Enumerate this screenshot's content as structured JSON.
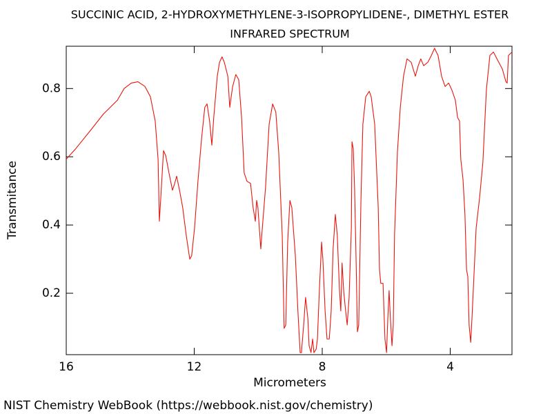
{
  "chart_data": {
    "type": "line",
    "title": "SUCCINIC ACID, 2-HYDROXYMETHYLENE-3-ISOPROPYLIDENE-, DIMETHYL ESTER",
    "subtitle": "INFRARED SPECTRUM",
    "x_label": "Micrometers",
    "y_label": "Transmitance",
    "credit": "NIST Chemistry WebBook (https://webbook.nist.gov/chemistry)",
    "color": "#e8140c",
    "xlim": [
      16,
      2.07
    ],
    "ylim": [
      0.02,
      0.924
    ],
    "xticks": [
      16,
      12,
      8,
      4
    ],
    "yticks": [
      0.2,
      0.4,
      0.6,
      0.8
    ],
    "x": [
      16.0,
      15.7,
      15.27,
      14.84,
      14.4,
      14.19,
      13.97,
      13.76,
      13.54,
      13.37,
      13.22,
      13.13,
      13.09,
      13.05,
      12.96,
      12.89,
      12.79,
      12.68,
      12.61,
      12.55,
      12.46,
      12.36,
      12.25,
      12.14,
      12.08,
      11.99,
      11.88,
      11.77,
      11.67,
      11.6,
      11.52,
      11.45,
      11.39,
      11.28,
      11.21,
      11.13,
      11.06,
      10.95,
      10.89,
      10.8,
      10.7,
      10.61,
      10.52,
      10.44,
      10.35,
      10.24,
      10.16,
      10.09,
      10.05,
      10.01,
      9.92,
      9.88,
      9.77,
      9.66,
      9.55,
      9.45,
      9.36,
      9.25,
      9.19,
      9.14,
      9.08,
      9.01,
      8.95,
      8.84,
      8.76,
      8.69,
      8.65,
      8.58,
      8.52,
      8.45,
      8.41,
      8.35,
      8.3,
      8.26,
      8.19,
      8.15,
      8.09,
      8.02,
      7.98,
      7.91,
      7.85,
      7.78,
      7.72,
      7.66,
      7.59,
      7.53,
      7.46,
      7.42,
      7.38,
      7.33,
      7.29,
      7.22,
      7.16,
      7.09,
      7.07,
      7.03,
      6.99,
      6.94,
      6.9,
      6.86,
      6.79,
      6.73,
      6.64,
      6.53,
      6.47,
      6.36,
      6.25,
      6.21,
      6.17,
      6.1,
      6.04,
      5.99,
      5.95,
      5.91,
      5.87,
      5.82,
      5.78,
      5.74,
      5.65,
      5.56,
      5.46,
      5.35,
      5.22,
      5.09,
      5.0,
      4.92,
      4.83,
      4.7,
      4.59,
      4.49,
      4.38,
      4.27,
      4.16,
      4.05,
      3.95,
      3.84,
      3.77,
      3.71,
      3.67,
      3.6,
      3.54,
      3.49,
      3.45,
      3.41,
      3.36,
      3.32,
      3.28,
      3.19,
      3.08,
      2.98,
      2.87,
      2.76,
      2.65,
      2.54,
      2.37,
      2.26,
      2.22,
      2.18,
      2.07
    ],
    "values": [
      0.593,
      0.624,
      0.674,
      0.725,
      0.766,
      0.8,
      0.816,
      0.82,
      0.806,
      0.776,
      0.705,
      0.593,
      0.411,
      0.472,
      0.618,
      0.603,
      0.553,
      0.502,
      0.522,
      0.543,
      0.502,
      0.451,
      0.37,
      0.3,
      0.31,
      0.391,
      0.533,
      0.654,
      0.745,
      0.755,
      0.705,
      0.634,
      0.715,
      0.836,
      0.877,
      0.893,
      0.877,
      0.836,
      0.745,
      0.806,
      0.841,
      0.826,
      0.715,
      0.553,
      0.528,
      0.522,
      0.451,
      0.411,
      0.472,
      0.451,
      0.33,
      0.381,
      0.512,
      0.695,
      0.755,
      0.731,
      0.614,
      0.37,
      0.097,
      0.107,
      0.35,
      0.472,
      0.451,
      0.31,
      0.148,
      0.026,
      0.026,
      0.107,
      0.188,
      0.127,
      0.046,
      0.026,
      0.066,
      0.026,
      0.036,
      0.066,
      0.208,
      0.35,
      0.3,
      0.148,
      0.066,
      0.066,
      0.148,
      0.33,
      0.431,
      0.37,
      0.208,
      0.148,
      0.289,
      0.208,
      0.168,
      0.107,
      0.188,
      0.391,
      0.644,
      0.624,
      0.512,
      0.289,
      0.087,
      0.107,
      0.472,
      0.695,
      0.776,
      0.792,
      0.776,
      0.695,
      0.451,
      0.269,
      0.229,
      0.229,
      0.066,
      0.026,
      0.127,
      0.208,
      0.127,
      0.046,
      0.107,
      0.37,
      0.614,
      0.745,
      0.836,
      0.887,
      0.877,
      0.836,
      0.867,
      0.887,
      0.867,
      0.877,
      0.897,
      0.918,
      0.897,
      0.836,
      0.806,
      0.816,
      0.796,
      0.766,
      0.715,
      0.705,
      0.593,
      0.533,
      0.431,
      0.269,
      0.249,
      0.107,
      0.056,
      0.127,
      0.208,
      0.391,
      0.482,
      0.583,
      0.796,
      0.897,
      0.907,
      0.887,
      0.857,
      0.82,
      0.816,
      0.897,
      0.907
    ]
  }
}
